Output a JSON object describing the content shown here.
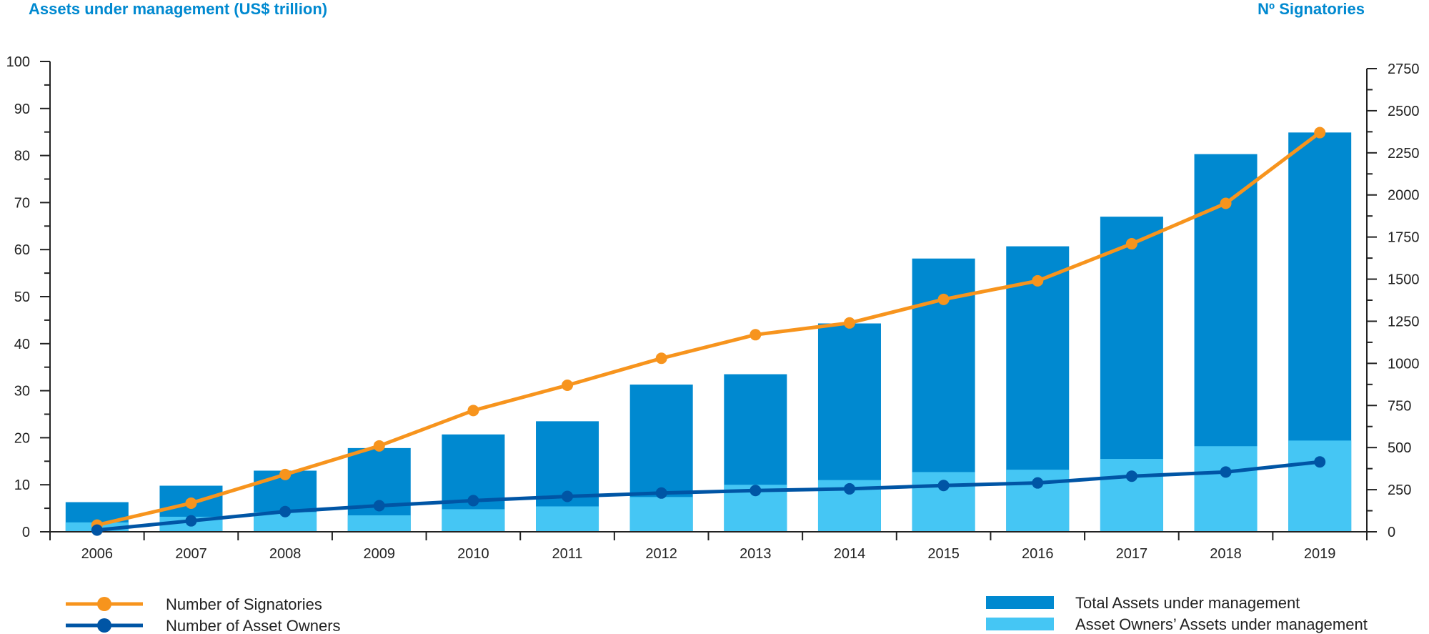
{
  "chart_data": {
    "type": "bar+line",
    "left_axis_title": "Assets under management (US$ trillion)",
    "right_axis_title": "Nº Signatories",
    "categories": [
      "2006",
      "2007",
      "2008",
      "2009",
      "2010",
      "2011",
      "2012",
      "2013",
      "2014",
      "2015",
      "2016",
      "2017",
      "2018",
      "2019"
    ],
    "left_ylim": [
      0,
      100
    ],
    "left_yticks": [
      0,
      10,
      20,
      30,
      40,
      50,
      60,
      70,
      80,
      90,
      100
    ],
    "right_ylim": [
      0,
      2750
    ],
    "right_yticks": [
      0,
      250,
      500,
      750,
      1000,
      1250,
      1500,
      1750,
      2000,
      2250,
      2500,
      2750
    ],
    "bar_series": [
      {
        "name": "Total Assets under management",
        "color": "#0089d0",
        "values": [
          6.3,
          9.8,
          13,
          17.8,
          20.7,
          23.5,
          31.3,
          33.5,
          44.3,
          58.1,
          60.7,
          67,
          80.3,
          84.9
        ]
      },
      {
        "name": "Asset Owners’ Assets under management",
        "color": "#45c6f4",
        "values": [
          2,
          3.2,
          4.2,
          3.5,
          4.8,
          5.4,
          7.4,
          10,
          11,
          12.7,
          13.2,
          15.5,
          18.2,
          19.4
        ]
      }
    ],
    "line_series": [
      {
        "name": "Number of Signatories",
        "color": "#f7941d",
        "values": [
          40,
          170,
          340,
          510,
          720,
          870,
          1030,
          1170,
          1240,
          1380,
          1490,
          1710,
          1950,
          2370
        ]
      },
      {
        "name": "Number of Asset Owners",
        "color": "#0055a5",
        "values": [
          10,
          65,
          120,
          155,
          185,
          210,
          230,
          245,
          255,
          275,
          290,
          330,
          355,
          415
        ]
      }
    ],
    "legend": {
      "left": [
        "Number of Signatories",
        "Number of Asset Owners"
      ],
      "right": [
        "Total Assets under management",
        "Asset Owners’ Assets under management"
      ]
    },
    "title_color": "#0089d0",
    "axis_color": "#222222"
  }
}
